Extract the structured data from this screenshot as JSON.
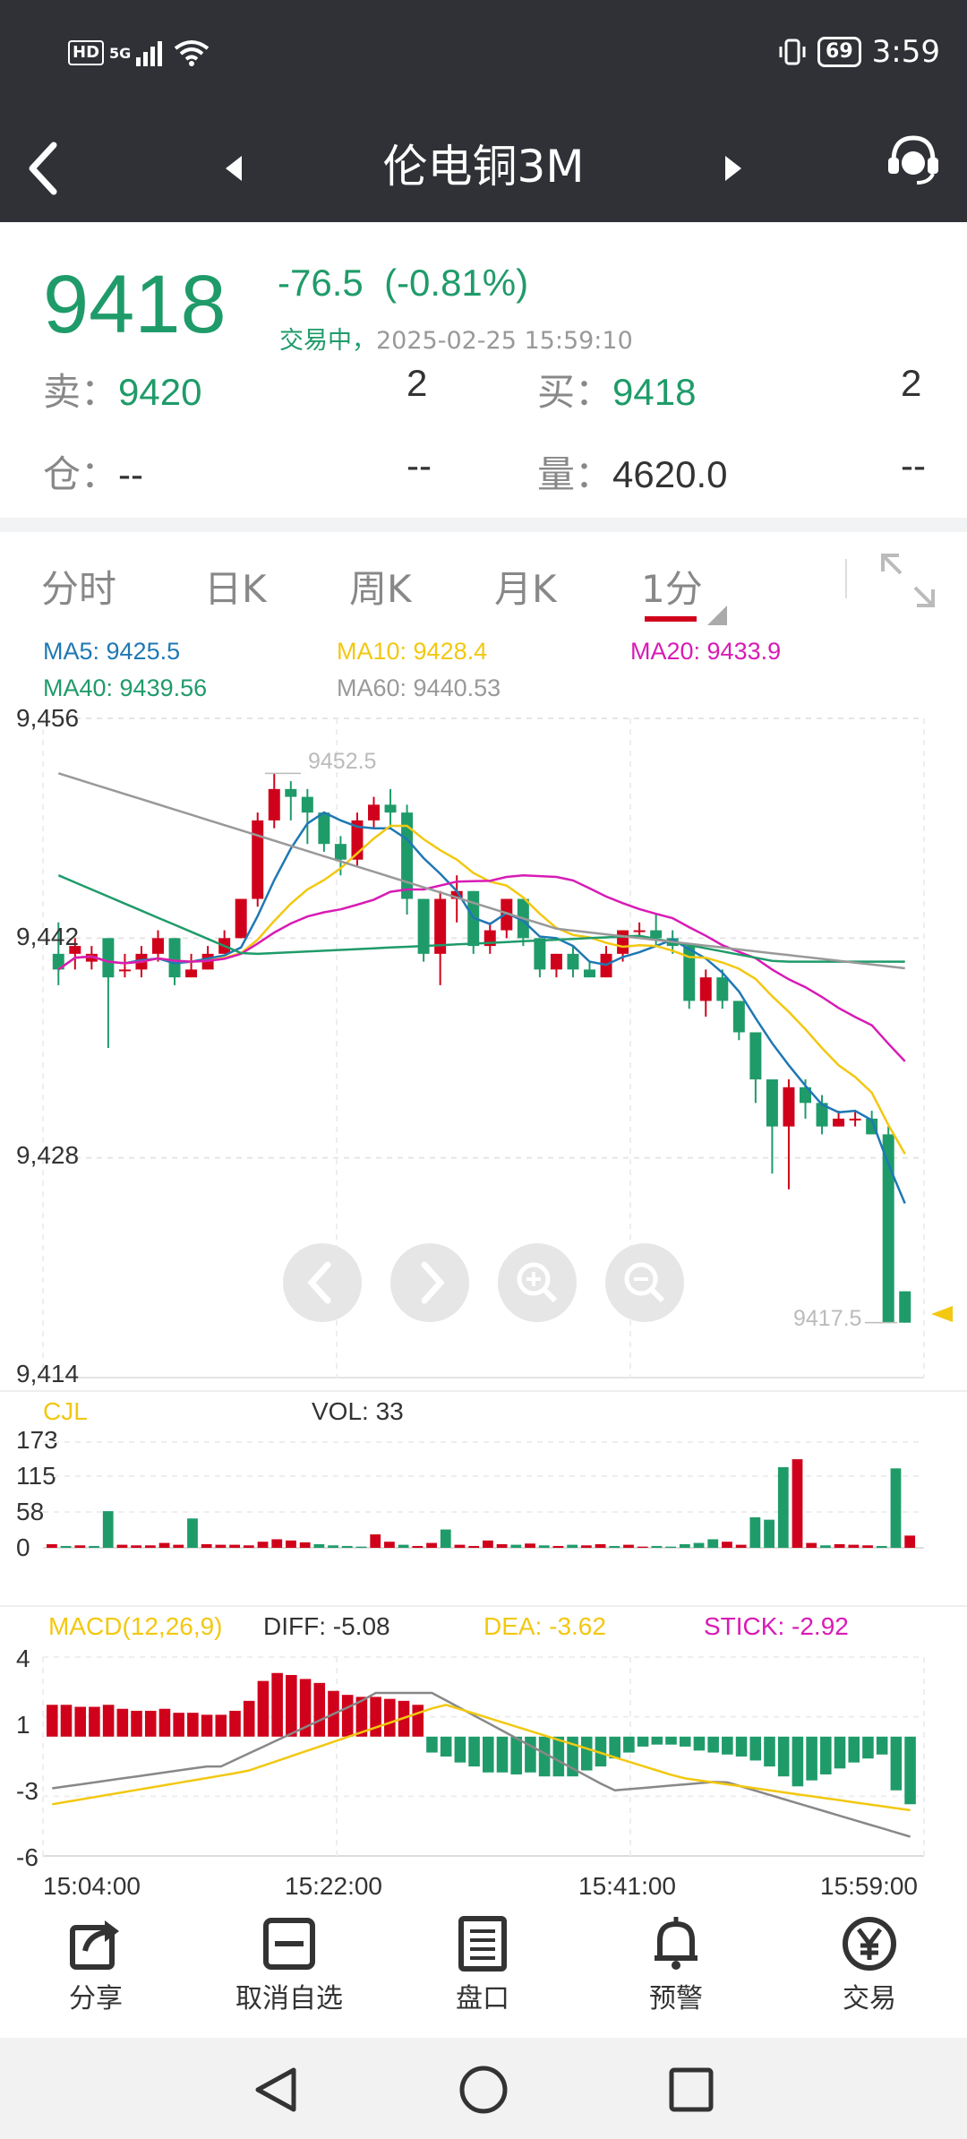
{
  "status_bar": {
    "hd": "HD",
    "net": "5G",
    "battery": "69",
    "time": "3:59"
  },
  "header": {
    "title": "伦电铜3M"
  },
  "quote": {
    "price": "9418",
    "change": "-76.5",
    "change_pct": "(-0.81%)",
    "trade_status": "交易中，",
    "timestamp": "2025-02-25 15:59:10",
    "sell_label": "卖：",
    "sell_price": "9420",
    "sell_qty": "2",
    "buy_label": "买：",
    "buy_price": "9418",
    "buy_qty": "2",
    "oi_label": "仓：",
    "oi_value": "--",
    "oi_change": "--",
    "vol_label": "量：",
    "vol_value": "4620.0",
    "vol_change": "--"
  },
  "tabs": [
    "分时",
    "日K",
    "周K",
    "月K",
    "1分"
  ],
  "ma": {
    "ma5": "MA5: 9425.5",
    "ma10": "MA10: 9428.4",
    "ma20": "MA20: 9433.9",
    "ma40": "MA40: 9439.56",
    "ma60": "MA60: 9440.53"
  },
  "colors": {
    "up": "#d0021b",
    "down": "#1f9b6a",
    "ma5": "#1f78b4",
    "ma10": "#f2c811",
    "ma20": "#d81bb5",
    "ma40": "#1f9b6a",
    "ma60": "#999999"
  },
  "price_chart": {
    "y_ticks": [
      "9,456",
      "9,442",
      "9,428",
      "9,414"
    ],
    "high_label": "9452.5",
    "low_label": "9417.5"
  },
  "volume_chart": {
    "title": "CJL",
    "vol_label": "VOL: 33",
    "y_ticks": [
      "173",
      "115",
      "58",
      "0"
    ]
  },
  "macd_chart": {
    "title": "MACD(12,26,9)",
    "diff": "DIFF: -5.08",
    "dea": "DEA: -3.62",
    "stick": "STICK: -2.92",
    "y_ticks": [
      "4",
      "1",
      "-3",
      "-6"
    ],
    "x_ticks": [
      "15:04:00",
      "15:22:00",
      "15:41:00",
      "15:59:00"
    ]
  },
  "bottom_nav": [
    {
      "label": "分享",
      "icon": "share-icon"
    },
    {
      "label": "取消自选",
      "icon": "remove-watchlist-icon"
    },
    {
      "label": "盘口",
      "icon": "order-book-icon"
    },
    {
      "label": "预警",
      "icon": "bell-icon"
    },
    {
      "label": "交易",
      "icon": "yen-icon"
    }
  ]
}
